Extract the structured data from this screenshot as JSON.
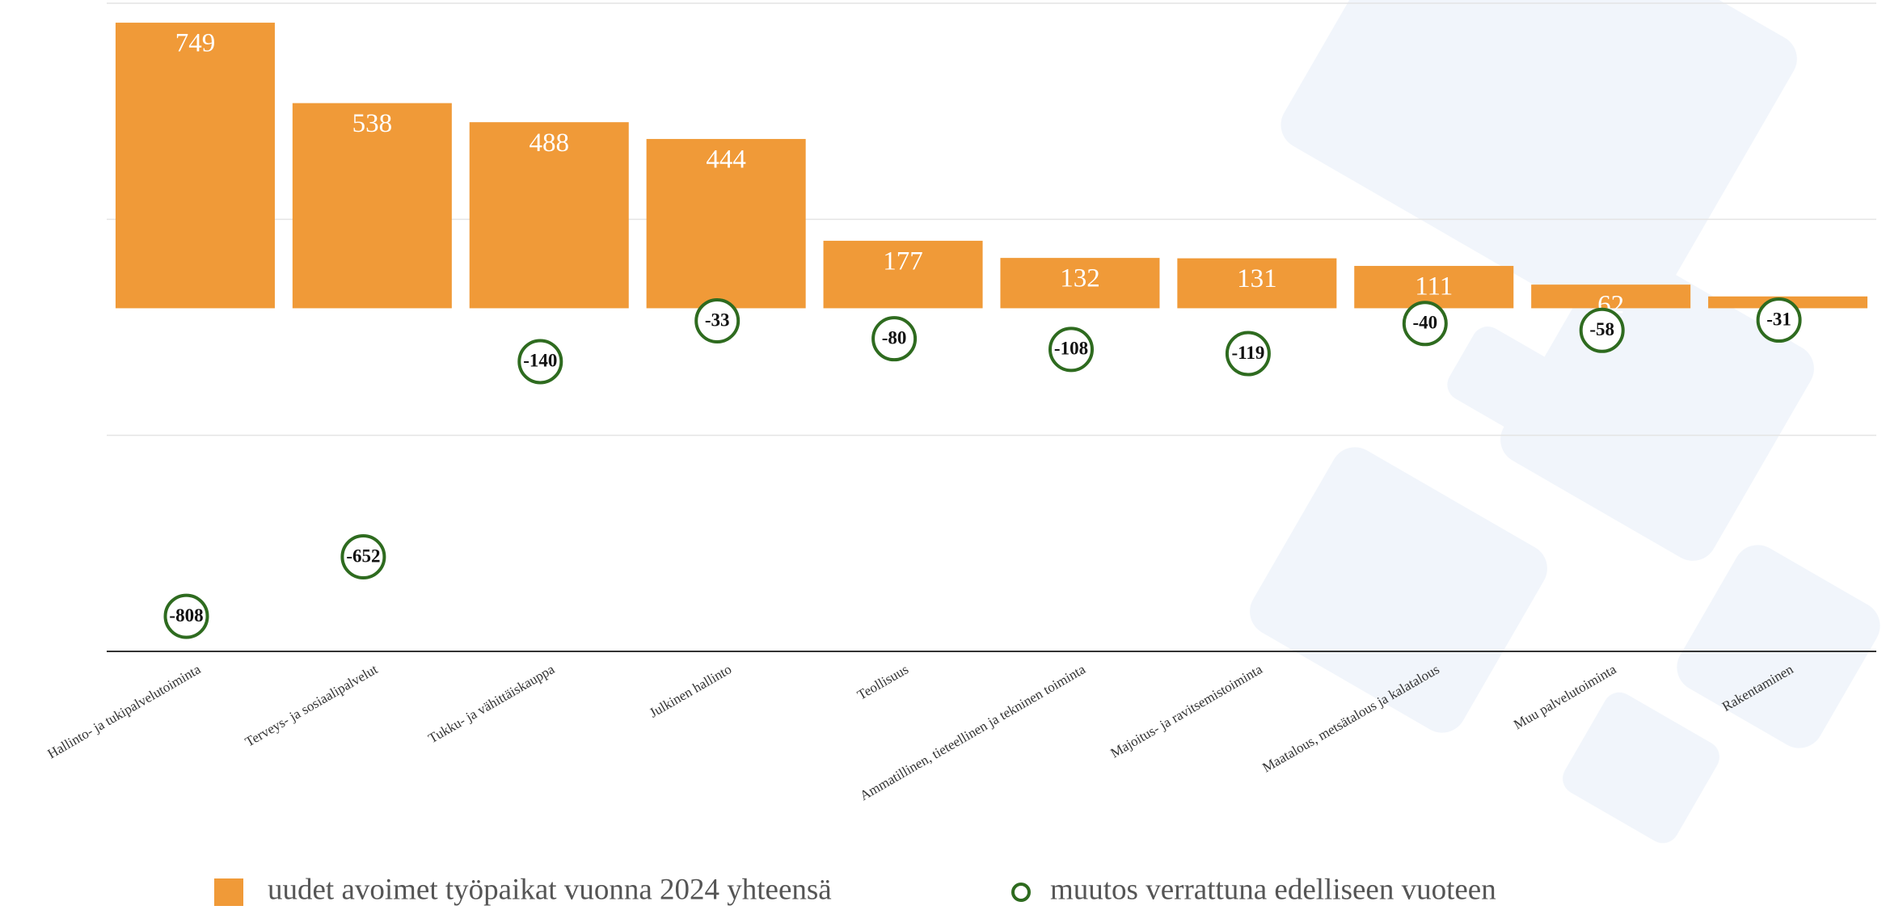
{
  "chart_data": {
    "type": "bar",
    "categories": [
      "Hallinto- ja tukipalvelutoiminta",
      "Terveys- ja sosiaalipalvelut",
      "Tukku- ja vähittäiskauppa",
      "Julkinen hallinto",
      "Teollisuus",
      "Ammatillinen, tieteellinen ja tekninen toiminta",
      "Majoitus- ja ravitsemistoiminta",
      "Maatalous, metsätalous ja kalatalous",
      "Muu palvelutoiminta",
      "Rakentaminen"
    ],
    "series": [
      {
        "name": "uudet avoimet työpaikat vuonna 2024 yhteensä",
        "type": "bar",
        "color": "#f09a38",
        "values": [
          749,
          538,
          488,
          444,
          177,
          132,
          131,
          111,
          62,
          31
        ]
      },
      {
        "name": "muutos verrattuna edelliseen vuoteen",
        "type": "scatter",
        "color": "#2e6b1f",
        "values": [
          -808,
          -652,
          -140,
          -33,
          -80,
          -108,
          -119,
          -40,
          -58,
          -31
        ]
      }
    ],
    "ylim": [
      -900,
      800
    ],
    "yticks": [
      -900,
      -333.33,
      233.33,
      800
    ],
    "grid": true,
    "legend": "bottom"
  }
}
